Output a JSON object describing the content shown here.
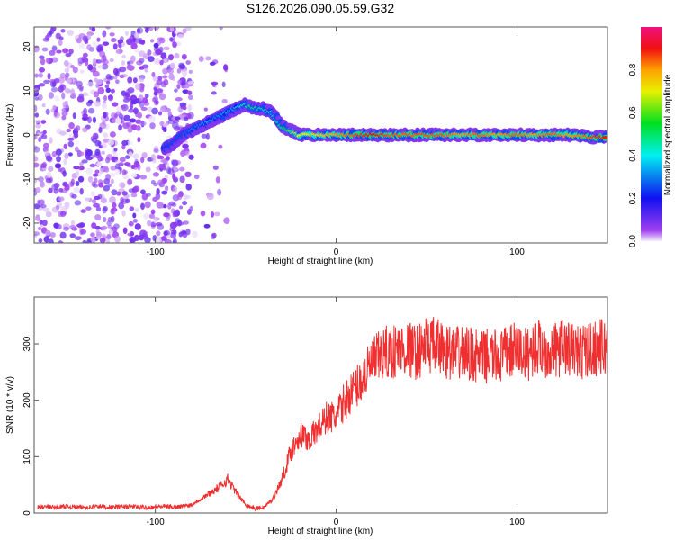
{
  "chart_data": [
    {
      "type": "heatmap",
      "title": "S126.2026.090.05.59.G32",
      "xlabel": "Height of straight line (km)",
      "ylabel": "Frequency (Hz)",
      "xlim": [
        -167,
        150
      ],
      "ylim": [
        -24.5,
        24.5
      ],
      "xticks": [
        -100,
        0,
        100
      ],
      "xtick_labels": [
        "-100",
        "0",
        "100"
      ],
      "yticks": [
        -20,
        -10,
        0,
        10,
        20
      ],
      "ytick_labels": [
        "-20",
        "-10",
        "0",
        "10",
        "20"
      ],
      "colorbar": {
        "label": "Normalized spectral amplitude",
        "range": [
          0,
          1
        ],
        "ticks": [
          "0.0",
          "0.2",
          "0.4",
          "0.6",
          "0.8"
        ],
        "tick_values": [
          0,
          0.2,
          0.4,
          0.6,
          0.8
        ]
      },
      "ridge": {
        "x": [
          -95,
          -90,
          -85,
          -80,
          -75,
          -70,
          -65,
          -60,
          -55,
          -50,
          -45,
          -40,
          -35,
          -30,
          -25,
          -20,
          -10,
          0,
          10,
          20,
          30,
          40,
          50,
          60,
          70,
          80,
          90,
          100,
          110,
          120,
          130,
          140,
          150
        ],
        "freq": [
          -3,
          -2,
          0,
          1,
          2,
          3,
          4,
          5,
          6,
          7,
          6,
          6,
          5,
          2,
          1,
          0,
          0,
          0,
          0,
          0,
          0,
          0,
          0,
          0,
          0,
          0,
          0,
          0,
          0,
          0,
          0,
          -0.5,
          -0.5
        ],
        "amplitude": [
          0.2,
          0.25,
          0.25,
          0.3,
          0.3,
          0.35,
          0.3,
          0.35,
          0.35,
          0.45,
          0.5,
          0.45,
          0.4,
          0.5,
          0.6,
          0.7,
          0.75,
          0.8,
          0.85,
          0.9,
          0.85,
          0.85,
          0.85,
          0.85,
          0.8,
          0.85,
          0.8,
          0.85,
          0.8,
          0.85,
          0.8,
          0.85,
          0.9
        ]
      },
      "noise_region_x": [
        -167,
        -60
      ]
    },
    {
      "type": "line",
      "xlabel": "Height of straight line (km)",
      "ylabel": "SNR (10 * v/v)",
      "xlim": [
        -167,
        150
      ],
      "ylim": [
        0,
        383
      ],
      "xticks": [
        -100,
        0,
        100
      ],
      "xtick_labels": [
        "-100",
        "0",
        "100"
      ],
      "yticks": [
        0,
        100,
        200,
        300
      ],
      "ytick_labels": [
        "0",
        "100",
        "200",
        "300"
      ],
      "series": [
        {
          "name": "SNR",
          "color": "#f03030",
          "x": [
            -165,
            -160,
            -155,
            -150,
            -145,
            -140,
            -135,
            -130,
            -125,
            -120,
            -115,
            -110,
            -105,
            -100,
            -95,
            -90,
            -85,
            -80,
            -75,
            -70,
            -65,
            -60,
            -55,
            -50,
            -45,
            -40,
            -35,
            -30,
            -25,
            -20,
            -15,
            -10,
            -5,
            0,
            5,
            10,
            15,
            20,
            25,
            30,
            35,
            40,
            45,
            50,
            55,
            60,
            65,
            70,
            75,
            80,
            85,
            90,
            95,
            100,
            105,
            110,
            115,
            120,
            125,
            130,
            135,
            140,
            145,
            150
          ],
          "y": [
            10,
            11,
            10,
            12,
            11,
            10,
            11,
            12,
            10,
            11,
            12,
            11,
            10,
            11,
            12,
            11,
            12,
            15,
            25,
            35,
            45,
            60,
            35,
            15,
            8,
            10,
            25,
            60,
            110,
            140,
            130,
            150,
            170,
            170,
            200,
            220,
            240,
            265,
            280,
            285,
            290,
            290,
            285,
            300,
            295,
            290,
            280,
            285,
            280,
            275,
            280,
            275,
            285,
            290,
            280,
            295,
            290,
            285,
            295,
            290,
            285,
            290,
            295,
            290
          ]
        }
      ]
    }
  ]
}
